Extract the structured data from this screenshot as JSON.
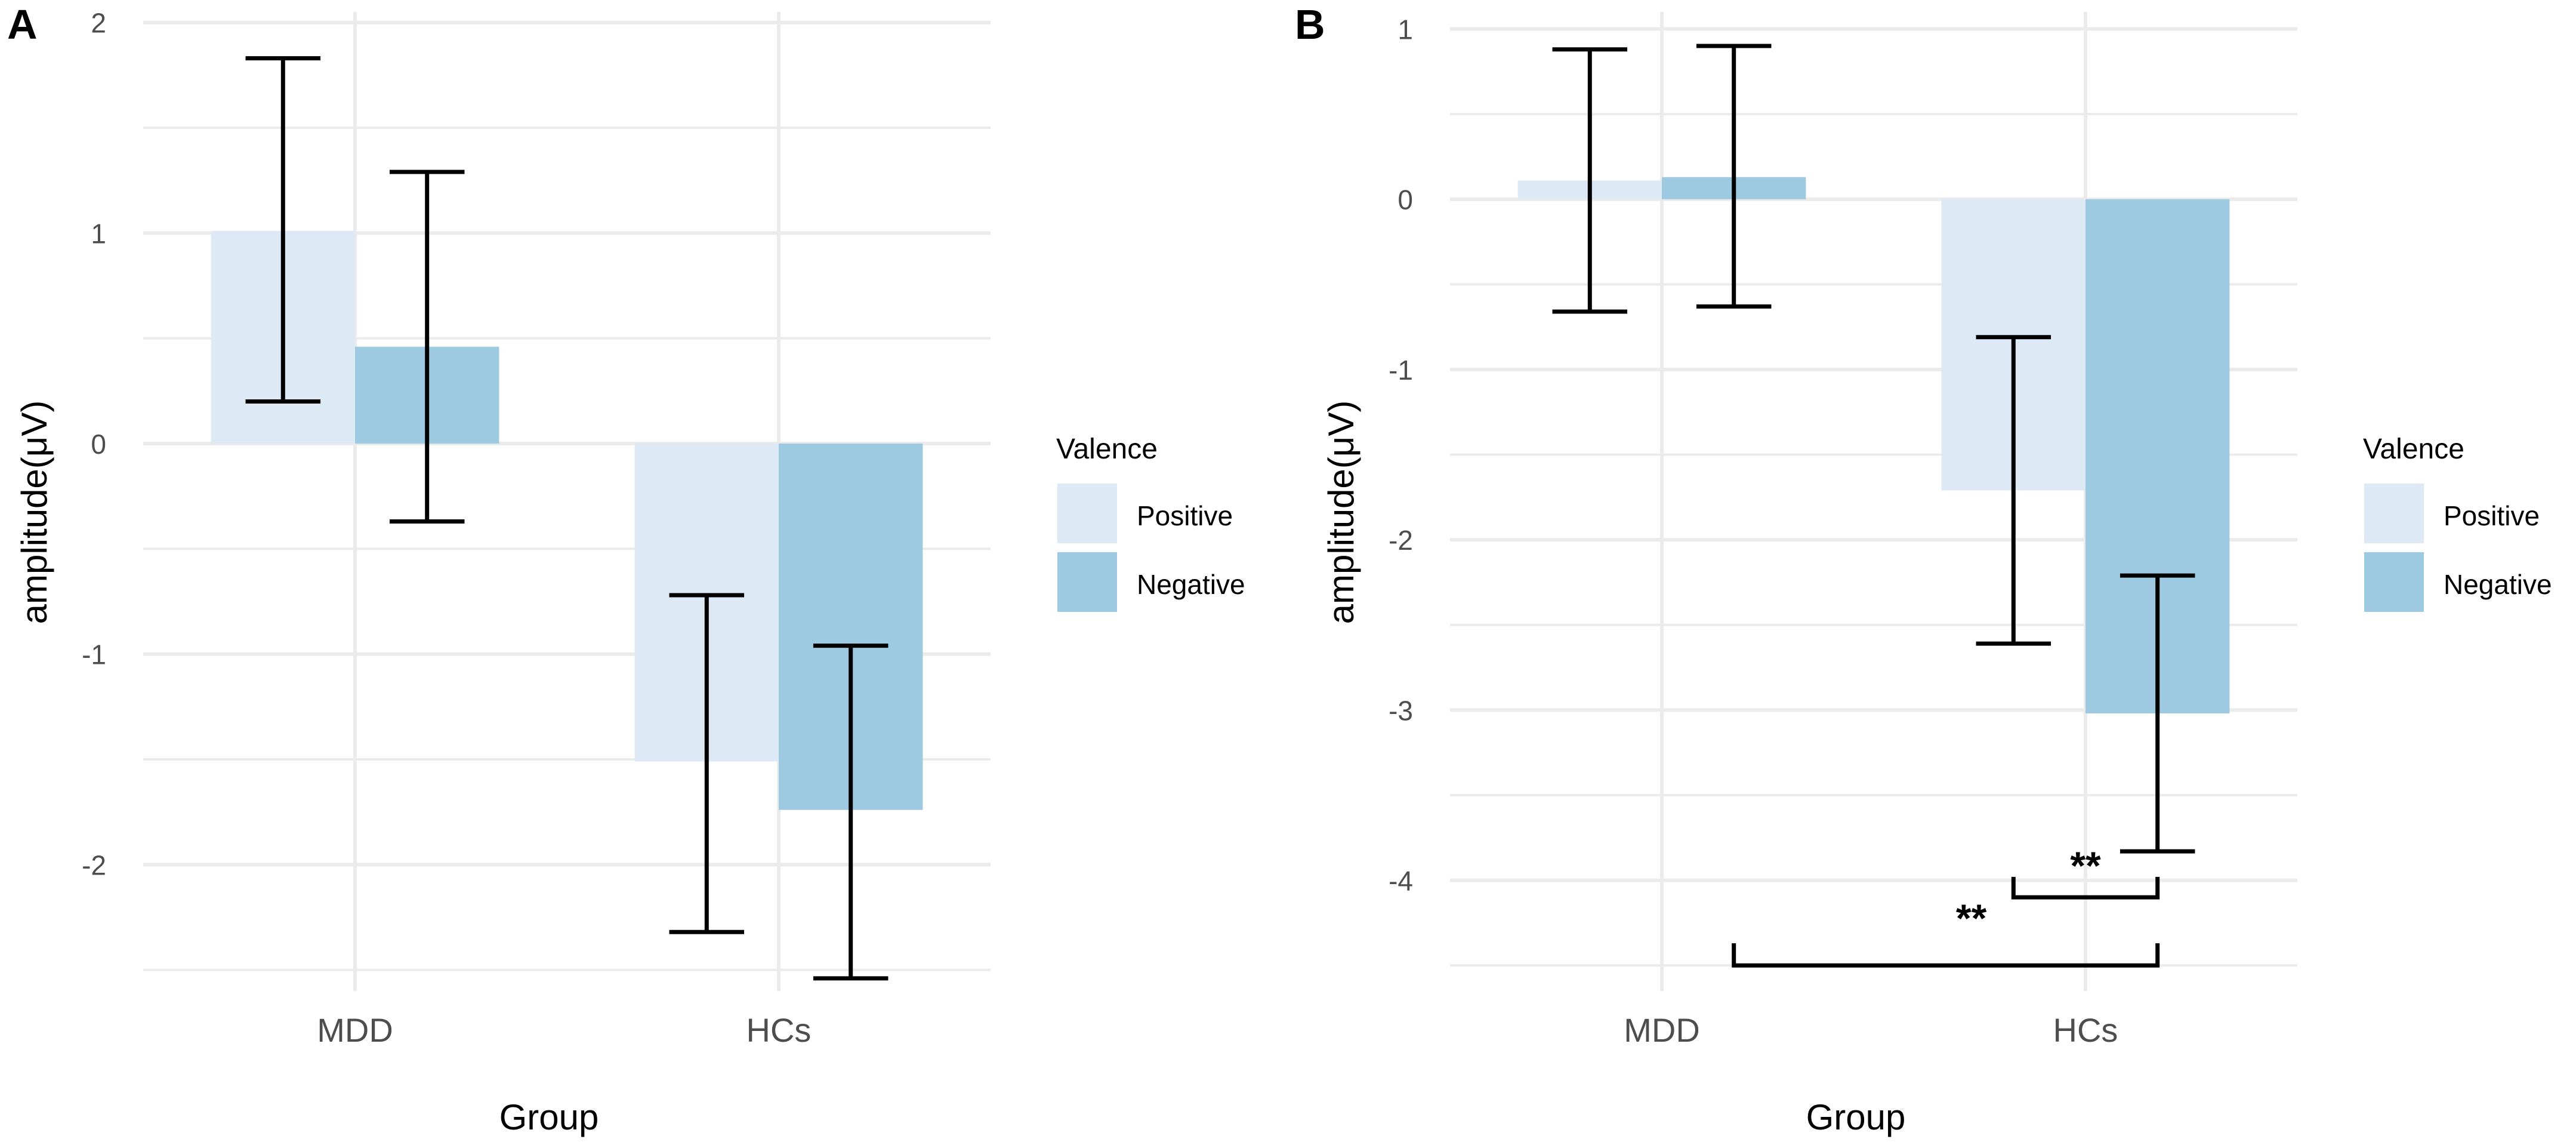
{
  "chart_data": [
    {
      "panel_label": "A",
      "type": "bar",
      "xlabel": "Group",
      "ylabel": "amplitude(μV)",
      "categories": [
        "MDD",
        "HCs"
      ],
      "ylim": [
        -2.6,
        2.05
      ],
      "yticks": [
        -2,
        -1,
        0,
        1,
        2
      ],
      "ytick_labels": [
        "-2",
        "-1",
        "0",
        "1",
        "2"
      ],
      "grid": true,
      "legend": {
        "title": "Valence",
        "position": "right"
      },
      "series": [
        {
          "name": "Positive",
          "values": [
            1.01,
            -1.51
          ],
          "error_low": [
            0.2,
            -2.32
          ],
          "error_high": [
            1.83,
            -0.72
          ]
        },
        {
          "name": "Negative",
          "values": [
            0.46,
            -1.74
          ],
          "error_low": [
            -0.37,
            -2.54
          ],
          "error_high": [
            1.29,
            -0.96
          ]
        }
      ],
      "significance": []
    },
    {
      "panel_label": "B",
      "type": "bar",
      "xlabel": "Group",
      "ylabel": "amplitude(μV)",
      "categories": [
        "MDD",
        "HCs"
      ],
      "ylim": [
        -4.65,
        1.1
      ],
      "yticks": [
        -4,
        -3,
        -2,
        -1,
        0,
        1
      ],
      "ytick_labels": [
        "-4",
        "-3",
        "-2",
        "-1",
        "0",
        "1"
      ],
      "grid": true,
      "legend": {
        "title": "Valence",
        "position": "right"
      },
      "series": [
        {
          "name": "Positive",
          "values": [
            0.11,
            -1.71
          ],
          "error_low": [
            -0.66,
            -2.61
          ],
          "error_high": [
            0.88,
            -0.81
          ]
        },
        {
          "name": "Negative",
          "values": [
            0.13,
            -3.02
          ],
          "error_low": [
            -0.63,
            -3.83
          ],
          "error_high": [
            0.9,
            -2.21
          ]
        }
      ],
      "significance": [
        {
          "from": [
            "HCs",
            "Positive"
          ],
          "to": [
            "HCs",
            "Negative"
          ],
          "y": -4.1,
          "tick_top": -3.98,
          "label": "**"
        },
        {
          "from": [
            "MDD",
            "Negative"
          ],
          "to": [
            "HCs",
            "Negative"
          ],
          "y": -4.5,
          "tick_top": -4.37,
          "label": "**"
        }
      ]
    }
  ],
  "colors": {
    "positive": "#dde9f5",
    "negative": "#9ecae1",
    "grid": "#ebebeb",
    "text": "#000000",
    "tick_text": "#4d4d4d"
  }
}
